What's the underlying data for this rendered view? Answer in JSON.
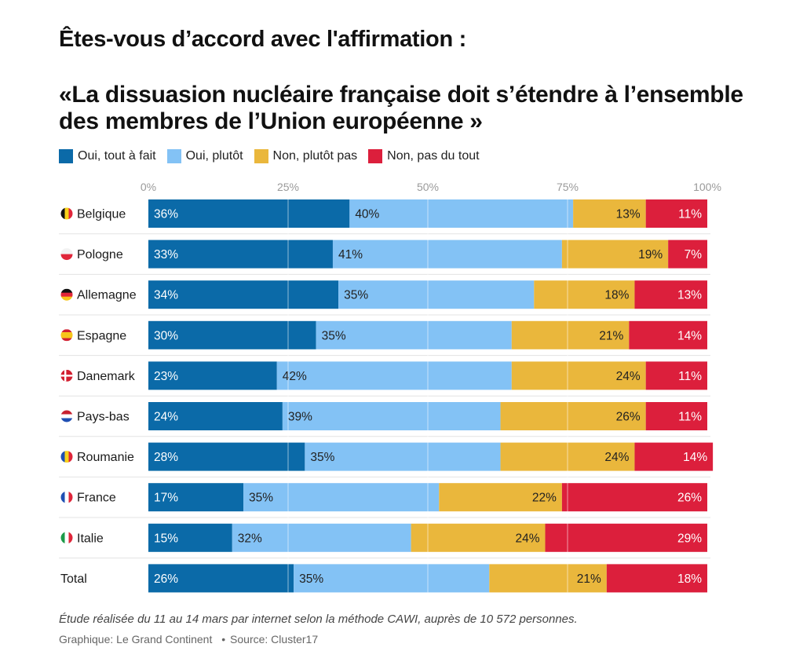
{
  "header": {
    "question": "Êtes-vous d’accord avec l'affirmation :",
    "statement": "«La dissuasion nucléaire française doit s’étendre à l’ensemble des membres de l’Union européenne »"
  },
  "footer": {
    "note": "Étude réalisée du 11 au 14 mars par internet selon la méthode CAWI, auprès de 10 572 personnes.",
    "credit": "Graphique: Le Grand Continent",
    "separator": "•",
    "source": "Source: Cluster17"
  },
  "chart_data": {
    "type": "bar",
    "orientation": "horizontal",
    "stacked": true,
    "xlim": [
      0,
      100
    ],
    "ticks": [
      0,
      25,
      50,
      75,
      100
    ],
    "tick_labels": [
      "0%",
      "25%",
      "50%",
      "75%",
      "100%"
    ],
    "categories": [
      "Belgique",
      "Pologne",
      "Allemagne",
      "Espagne",
      "Danemark",
      "Pays-bas",
      "Roumanie",
      "France",
      "Italie",
      "Total"
    ],
    "flags": [
      "be",
      "pl",
      "de",
      "es",
      "dk",
      "nl",
      "ro",
      "fr",
      "it",
      ""
    ],
    "series": [
      {
        "name": "Oui, tout à fait",
        "color": "#0b6aa8",
        "label_color": "#ffffff",
        "values": [
          36,
          33,
          34,
          30,
          23,
          24,
          28,
          17,
          15,
          26
        ]
      },
      {
        "name": "Oui, plutôt",
        "color": "#83c2f5",
        "label_color": "#222222",
        "values": [
          40,
          41,
          35,
          35,
          42,
          39,
          35,
          35,
          32,
          35
        ]
      },
      {
        "name": "Non, plutôt pas",
        "color": "#eab73c",
        "label_color": "#222222",
        "values": [
          13,
          19,
          18,
          21,
          24,
          26,
          24,
          22,
          24,
          21
        ]
      },
      {
        "name": "Non, pas du tout",
        "color": "#dc1f3c",
        "label_color": "#ffffff",
        "values": [
          11,
          7,
          13,
          14,
          11,
          11,
          14,
          26,
          29,
          18
        ]
      }
    ]
  }
}
